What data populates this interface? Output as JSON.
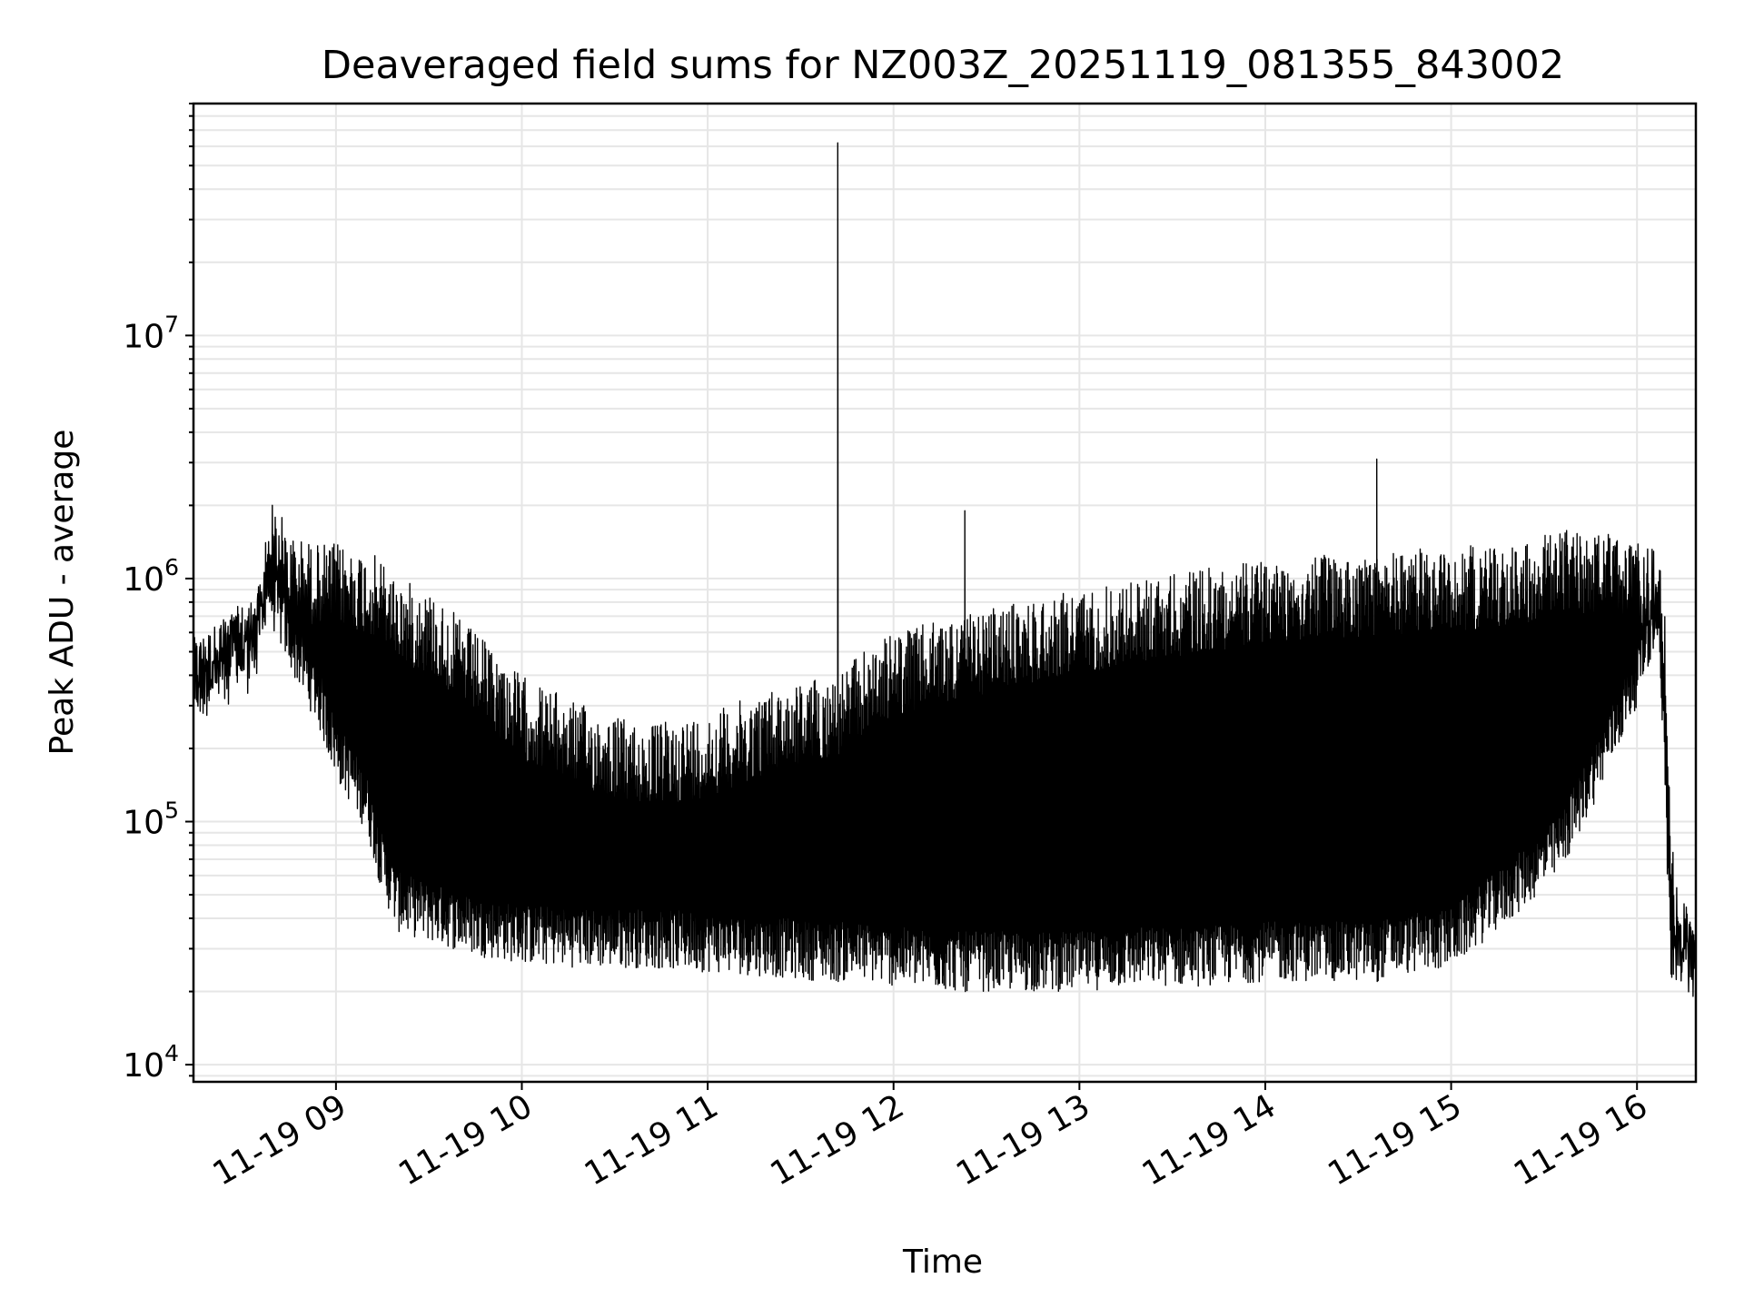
{
  "chart_data": {
    "type": "line",
    "title": "Deaveraged field sums for NZ003Z_20251119_081355_843002",
    "xlabel": "Time",
    "ylabel": "Peak ADU - average",
    "yscale": "log",
    "ylim": [
      8500,
      90000000
    ],
    "xlim": [
      "2025-11-19 08:14",
      "2025-11-19 16:19"
    ],
    "grid": true,
    "legend": "none",
    "x_ticks": [
      {
        "value": "2025-11-19 09:00",
        "label": "11-19 09"
      },
      {
        "value": "2025-11-19 10:00",
        "label": "11-19 10"
      },
      {
        "value": "2025-11-19 11:00",
        "label": "11-19 11"
      },
      {
        "value": "2025-11-19 12:00",
        "label": "11-19 12"
      },
      {
        "value": "2025-11-19 13:00",
        "label": "11-19 13"
      },
      {
        "value": "2025-11-19 14:00",
        "label": "11-19 14"
      },
      {
        "value": "2025-11-19 15:00",
        "label": "11-19 15"
      },
      {
        "value": "2025-11-19 16:00",
        "label": "11-19 16"
      }
    ],
    "y_ticks": [
      {
        "value": 10000,
        "base": "10",
        "exp": "4"
      },
      {
        "value": 100000,
        "base": "10",
        "exp": "5"
      },
      {
        "value": 1000000,
        "base": "10",
        "exp": "6"
      },
      {
        "value": 10000000,
        "base": "10",
        "exp": "7"
      }
    ],
    "series": [
      {
        "color": "#000000",
        "x": [
          "2025-11-19 08:14",
          "2025-11-19 08:20",
          "2025-11-19 08:27",
          "2025-11-19 08:33",
          "2025-11-19 08:36",
          "2025-11-19 08:38",
          "2025-11-19 08:40",
          "2025-11-19 08:46",
          "2025-11-19 08:54",
          "2025-11-19 09:00",
          "2025-11-19 09:10",
          "2025-11-19 09:15",
          "2025-11-19 09:20",
          "2025-11-19 09:30",
          "2025-11-19 09:45",
          "2025-11-19 10:00",
          "2025-11-19 10:20",
          "2025-11-19 10:40",
          "2025-11-19 11:00",
          "2025-11-19 11:20",
          "2025-11-19 11:38",
          "2025-11-19 11:42",
          "2025-11-19 11:46",
          "2025-11-19 11:50",
          "2025-11-19 12:00",
          "2025-11-19 12:20",
          "2025-11-19 12:23",
          "2025-11-19 12:40",
          "2025-11-19 13:00",
          "2025-11-19 13:20",
          "2025-11-19 13:40",
          "2025-11-19 14:00",
          "2025-11-19 14:20",
          "2025-11-19 14:32",
          "2025-11-19 14:36",
          "2025-11-19 14:40",
          "2025-11-19 15:00",
          "2025-11-19 15:20",
          "2025-11-19 15:35",
          "2025-11-19 15:50",
          "2025-11-19 16:00",
          "2025-11-19 16:07",
          "2025-11-19 16:09",
          "2025-11-19 16:11",
          "2025-11-19 16:13",
          "2025-11-19 16:19"
        ],
        "y": [
          400000,
          450000,
          520000,
          620000,
          650000,
          1200000,
          2800000,
          750000,
          600000,
          400000,
          300000,
          200000,
          90000,
          45000,
          38000,
          36000,
          34000,
          33000,
          30000,
          30000,
          32000,
          62000000,
          35000,
          30000,
          28000,
          29000,
          1900000,
          27000,
          27000,
          27000,
          27000,
          28000,
          28000,
          29000,
          3100000,
          30000,
          40000,
          60000,
          200000,
          500000,
          900000,
          1200000,
          300000,
          40000,
          30000,
          25000
        ],
        "band_high": [
          550000,
          620000,
          700000,
          750000,
          1000000,
          2000000,
          2100000,
          1500000,
          1400000,
          1400000,
          1300000,
          1200000,
          1000000,
          900000,
          600000,
          400000,
          300000,
          250000,
          280000,
          350000,
          400000,
          400000,
          450000,
          500000,
          600000,
          700000,
          700000,
          800000,
          900000,
          1000000,
          1100000,
          1200000,
          1250000,
          1250000,
          1250000,
          1300000,
          1350000,
          1400000,
          1600000,
          1550000,
          1400000,
          1300000,
          700000,
          100000,
          50000,
          40000
        ],
        "band_low": [
          320000,
          360000,
          420000,
          480000,
          550000,
          700000,
          600000,
          400000,
          250000,
          150000,
          90000,
          50000,
          35000,
          32000,
          28000,
          26000,
          25000,
          25000,
          24000,
          23000,
          22000,
          22000,
          22000,
          22000,
          21000,
          20000,
          20000,
          20000,
          20000,
          21000,
          21000,
          22000,
          22000,
          22000,
          22000,
          23000,
          25000,
          40000,
          60000,
          150000,
          300000,
          600000,
          120000,
          20000,
          22000,
          22000
        ]
      }
    ]
  }
}
